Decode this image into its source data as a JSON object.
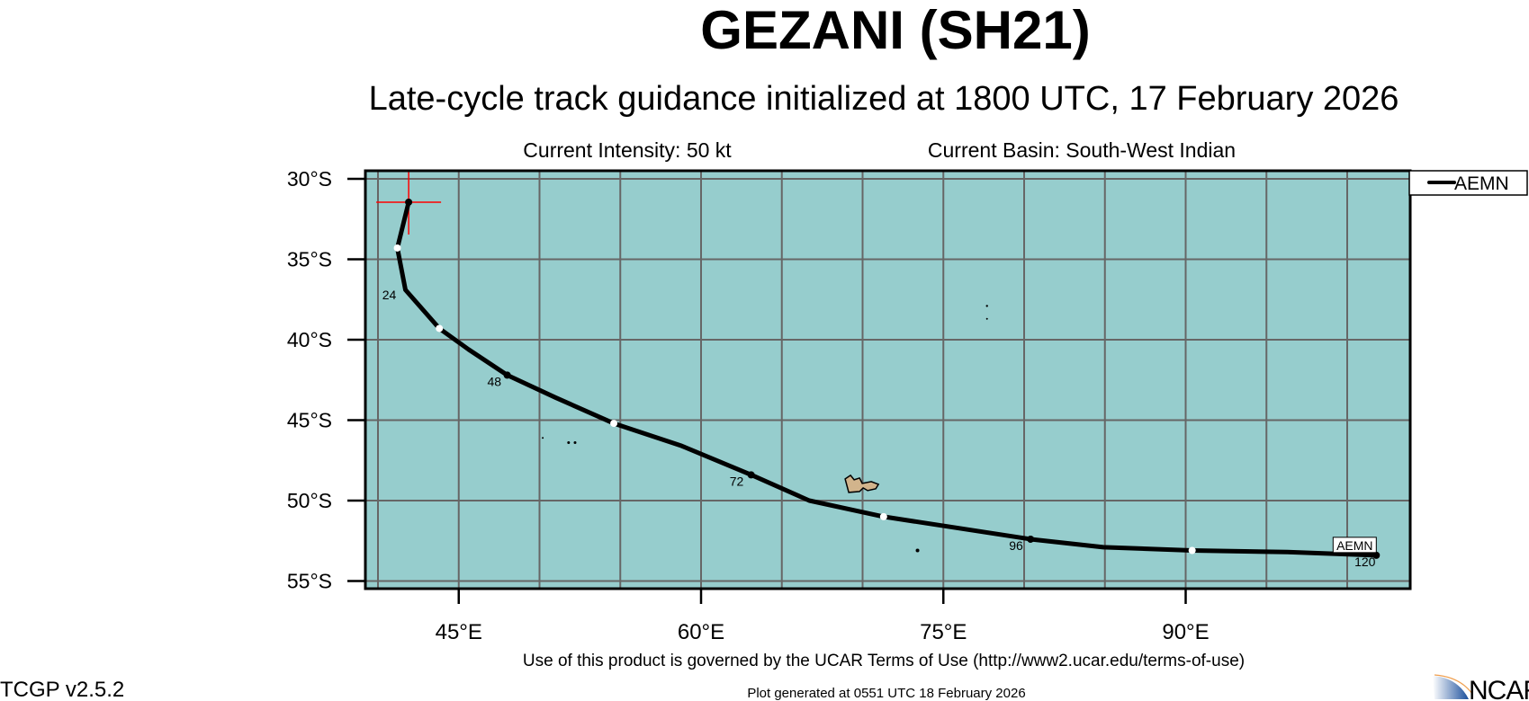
{
  "header": {
    "title": "GEZANI (SH21)",
    "subtitle": "Late-cycle track guidance initialized at 1800 UTC, 17 February 2026",
    "intensity": "Current Intensity: 50 kt",
    "basin": "Current Basin: South-West Indian"
  },
  "footer": {
    "terms": "Use of this product is governed by the UCAR Terms of Use (http://www2.ucar.edu/terms-of-use)",
    "version": "TCGP v2.5.2",
    "generated": "Plot generated at 0551 UTC   18 February 2026",
    "logo_text": "NCAR"
  },
  "colors": {
    "ocean": "#96cdcd",
    "land": "#d2b48c",
    "grid": "#666666",
    "track": "#000000",
    "current_position": "#ff0000"
  },
  "chart_data": {
    "type": "map-track",
    "lon_range": [
      39.2,
      103.7
    ],
    "lat_range_south": [
      29.45,
      55.35
    ],
    "lat_ticks": [
      {
        "v": 30,
        "label": "30°S"
      },
      {
        "v": 35,
        "label": "35°S"
      },
      {
        "v": 40,
        "label": "40°S"
      },
      {
        "v": 45,
        "label": "45°S"
      },
      {
        "v": 50,
        "label": "50°S"
      },
      {
        "v": 55,
        "label": "55°S"
      }
    ],
    "lon_ticks": [
      {
        "v": 45,
        "label": "45°E"
      },
      {
        "v": 60,
        "label": "60°E"
      },
      {
        "v": 75,
        "label": "75°E"
      },
      {
        "v": 90,
        "label": "90°E"
      }
    ],
    "grid_lons": [
      40,
      45,
      50,
      55,
      60,
      65,
      70,
      75,
      80,
      85,
      90,
      95,
      100
    ],
    "grid_lats": [
      30,
      35,
      40,
      45,
      50,
      55
    ],
    "legend": {
      "entries": [
        "AEMN"
      ],
      "placement": "top-right outside"
    },
    "current_position": {
      "lon": 41.9,
      "lat_s": 31.45
    },
    "series": [
      {
        "name": "AEMN",
        "end_label": "AEMN",
        "track": [
          [
            41.9,
            31.45
          ],
          [
            41.2,
            34.3
          ],
          [
            41.7,
            36.9
          ],
          [
            43.8,
            39.3
          ],
          [
            45.6,
            40.6
          ],
          [
            48.0,
            42.2
          ],
          [
            51.0,
            43.6
          ],
          [
            54.6,
            45.2
          ],
          [
            58.8,
            46.6
          ],
          [
            63.1,
            48.4
          ],
          [
            66.7,
            50.0
          ],
          [
            71.3,
            51.0
          ],
          [
            80.4,
            52.4
          ],
          [
            84.9,
            52.9
          ],
          [
            90.4,
            53.1
          ],
          [
            96.3,
            53.2
          ],
          [
            101.8,
            53.4
          ]
        ],
        "points": [
          {
            "hour": 0,
            "lon": 41.9,
            "lat_s": 31.45,
            "marker": "black"
          },
          {
            "hour": 12,
            "lon": 41.2,
            "lat_s": 34.3,
            "marker": "white"
          },
          {
            "hour": 36,
            "lon": 43.8,
            "lat_s": 39.3,
            "marker": "white"
          },
          {
            "hour": 48,
            "lon": 48.0,
            "lat_s": 42.2,
            "marker": "black"
          },
          {
            "hour": 60,
            "lon": 54.6,
            "lat_s": 45.2,
            "marker": "white"
          },
          {
            "hour": 72,
            "lon": 63.1,
            "lat_s": 48.4,
            "marker": "black"
          },
          {
            "hour": 84,
            "lon": 71.3,
            "lat_s": 51.0,
            "marker": "white"
          },
          {
            "hour": 96,
            "lon": 80.4,
            "lat_s": 52.4,
            "marker": "black"
          },
          {
            "hour": 108,
            "lon": 90.4,
            "lat_s": 53.1,
            "marker": "white"
          },
          {
            "hour": 120,
            "lon": 101.8,
            "lat_s": 53.4,
            "marker": "black"
          }
        ],
        "hour_labels": [
          {
            "text": "24",
            "lon": 40.7,
            "lat_s": 37.2
          },
          {
            "text": "48",
            "lon": 47.2,
            "lat_s": 42.6
          },
          {
            "text": "72",
            "lon": 62.2,
            "lat_s": 48.8
          },
          {
            "text": "96",
            "lon": 79.5,
            "lat_s": 52.8
          },
          {
            "text": "120",
            "lon": 101.1,
            "lat_s": 53.8
          }
        ]
      }
    ],
    "islands": [
      {
        "name": "Crozet",
        "lon": 50.2,
        "lat_s": 46.1,
        "size": 1
      },
      {
        "name": "Crozet",
        "lon": 51.8,
        "lat_s": 46.4,
        "size": 1.5
      },
      {
        "name": "Crozet",
        "lon": 52.2,
        "lat_s": 46.4,
        "size": 1.5
      },
      {
        "name": "Kerguelen",
        "lon": 69.7,
        "lat_s": 49.1,
        "size": 9
      },
      {
        "name": "Heard",
        "lon": 73.4,
        "lat_s": 53.1,
        "size": 2
      },
      {
        "name": "Amsterdam",
        "lon": 77.7,
        "lat_s": 37.9,
        "size": 1.2
      },
      {
        "name": "Saint-Paul",
        "lon": 77.7,
        "lat_s": 38.7,
        "size": 1
      }
    ]
  }
}
